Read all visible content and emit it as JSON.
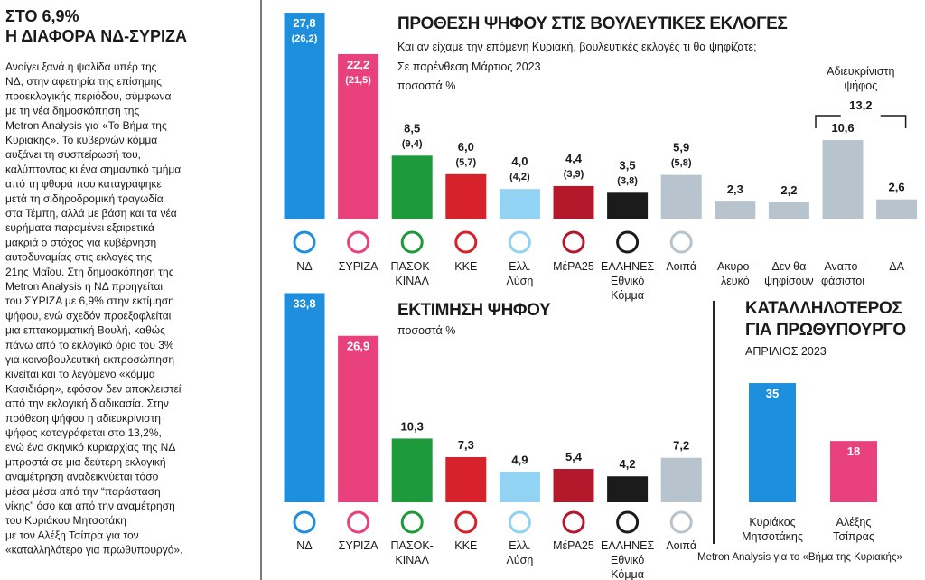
{
  "article": {
    "title": [
      "ΣΤΟ 6,9%",
      "Η ΔΙΑΦΟΡΑ ΝΔ-ΣΥΡΙΖΑ"
    ],
    "body": [
      "Ανοίγει ξανά η ψαλίδα υπέρ της",
      "ΝΔ, στην αφετηρία της επίσημης",
      "προεκλογικής περιόδου, σύμφωνα",
      "με τη νέα δημοσκόπηση της",
      "Metron Analysis για «Το Βήμα της",
      "Κυριακής». Το κυβερνών κόμμα",
      "αυξάνει τη συσπείρωσή του,",
      "καλύπτοντας κι ένα σημαντικό τμήμα",
      "από τη φθορά που καταγράφηκε",
      "μετά τη σιδηροδρομική τραγωδία",
      "στα Τέμπη, αλλά με βάση και τα νέα",
      "ευρήματα παραμένει εξαιρετικά",
      "μακριά ο στόχος για κυβέρνηση",
      "αυτοδυναμίας στις εκλογές της",
      "21ης Μαΐου. Στη δημοσκόπηση της",
      "Metron Analysis η ΝΔ προηγείται",
      "του ΣΥΡΙΖΑ με 6,9% στην εκτίμηση",
      "ψήφου, ενώ σχεδόν προεξοφλείται",
      "μια επτακομματική Βουλή, καθώς",
      "πάνω από το εκλογικό όριο του 3%",
      "για κοινοβουλευτική εκπροσώπηση",
      "κινείται και το λεγόμενο «κόμμα",
      "Κασιδιάρη», εφόσον δεν αποκλειστεί",
      "από την εκλογική διαδικασία. Στην",
      "πρόθεση ψήφου η αδιευκρίνιστη",
      "ψήφος καταγράφεται στο 13,2%,",
      "ενώ ένα σκηνικό κυριαρχίας της ΝΔ",
      "μπροστά σε μια δεύτερη εκλογική",
      "αναμέτρηση αναδεικνύεται τόσο",
      "μέσα μέσα από την “παράσταση",
      "νίκης” όσο και από την αναμέτρηση",
      "του Κυριάκου Μητσοτάκη",
      "με τον Αλέξη Τσίπρα για τον",
      "«καταλληλότερο για πρωθυπουργό»."
    ]
  },
  "chart_data": [
    {
      "type": "bar",
      "title": [
        "ΠΡΟΘΕΣΗ ΨΗΦΟΥ ΣΤΙΣ ΒΟΥΛΕΥΤΙΚΕΣ ΕΚΛΟΓΕΣ"
      ],
      "subtitle": [
        "Και αν είχαμε την επόμενη Κυριακή, βουλευτικές εκλογές τι θα ψηφίζατε;",
        "Σε παρένθεση Μάρτιος 2023",
        "ποσοστά %"
      ],
      "categories": [
        [
          "ΝΔ"
        ],
        [
          "ΣΥΡΙΖΑ"
        ],
        [
          "ΠΑΣΟΚ-",
          "ΚΙΝΑΛ"
        ],
        [
          "ΚΚΕ"
        ],
        [
          "Ελλ.",
          "Λύση"
        ],
        [
          "ΜέΡΑ25"
        ],
        [
          "ΕΛΛΗΝΕΣ",
          "Εθνικό",
          "Κόμμα"
        ],
        [
          "Λοιπά"
        ],
        [
          "Ακυρο-",
          "λευκό"
        ],
        [
          "Δεν θα",
          "ψηφίσουν"
        ],
        [
          "Αναπο-",
          "φάσιστοι"
        ],
        [
          "ΔΑ"
        ]
      ],
      "values": [
        27.8,
        22.2,
        8.5,
        6.0,
        4.0,
        4.4,
        3.5,
        5.9,
        2.3,
        2.2,
        10.6,
        2.6
      ],
      "value_labels": [
        "27,8",
        "22,2",
        "8,5",
        "6,0",
        "4,0",
        "4,4",
        "3,5",
        "5,9",
        "2,3",
        "2,2",
        "10,6",
        "2,6"
      ],
      "previous_values": [
        26.2,
        21.5,
        9.4,
        5.7,
        4.2,
        3.9,
        3.8,
        5.8,
        null,
        null,
        null,
        null
      ],
      "previous_value_labels": [
        "(26,2)",
        "(21,5)",
        "(9,4)",
        "(5,7)",
        "(4,2)",
        "(3,9)",
        "(3,8)",
        "(5,8)",
        null,
        null,
        null,
        null
      ],
      "colors": [
        "#1e8fdc",
        "#e8417b",
        "#1d9a3c",
        "#d8222b",
        "#92d2f2",
        "#b3182b",
        "#1b1b1b",
        "#b7c4cd",
        "#b7c4cd",
        "#b7c4cd",
        "#b7c4cd",
        "#b7c4cd"
      ],
      "annotation": {
        "title": [
          "Αδιευκρίνιστη",
          "ψήφος"
        ],
        "value": 13.2,
        "value_label": "13,2"
      }
    },
    {
      "type": "bar",
      "title": [
        "ΕΚΤΙΜΗΣΗ ΨΗΦΟΥ"
      ],
      "subtitle": [
        "ποσοστά %"
      ],
      "categories": [
        [
          "ΝΔ"
        ],
        [
          "ΣΥΡΙΖΑ"
        ],
        [
          "ΠΑΣΟΚ-",
          "ΚΙΝΑΛ"
        ],
        [
          "ΚΚΕ"
        ],
        [
          "Ελλ.",
          "Λύση"
        ],
        [
          "ΜέΡΑ25"
        ],
        [
          "ΕΛΛΗΝΕΣ",
          "Εθνικό",
          "Κόμμα"
        ],
        [
          "Λοιπά"
        ]
      ],
      "values": [
        33.8,
        26.9,
        10.3,
        7.3,
        4.9,
        5.4,
        4.2,
        7.2
      ],
      "value_labels": [
        "33,8",
        "26,9",
        "10,3",
        "7,3",
        "4,9",
        "5,4",
        "4,2",
        "7,2"
      ],
      "colors": [
        "#1e8fdc",
        "#e8417b",
        "#1d9a3c",
        "#d8222b",
        "#92d2f2",
        "#b3182b",
        "#1b1b1b",
        "#b7c4cd"
      ]
    },
    {
      "type": "bar",
      "title": [
        "ΚΑΤΑΛΛΗΛΟΤΕΡΟΣ",
        "ΓΙΑ ΠΡΩΘΥΠΟΥΡΓΟ"
      ],
      "subtitle": [
        "ΑΠΡΙΛΙΟΣ 2023"
      ],
      "categories": [
        [
          "Κυριάκος",
          "Μητσοτάκης"
        ],
        [
          "Αλέξης",
          "Τσίπρας"
        ]
      ],
      "values": [
        35,
        18
      ],
      "colors": [
        "#1e8fdc",
        "#e8417b"
      ],
      "source": "Metron Analysis για το «Βήμα της Κυριακής»"
    }
  ]
}
